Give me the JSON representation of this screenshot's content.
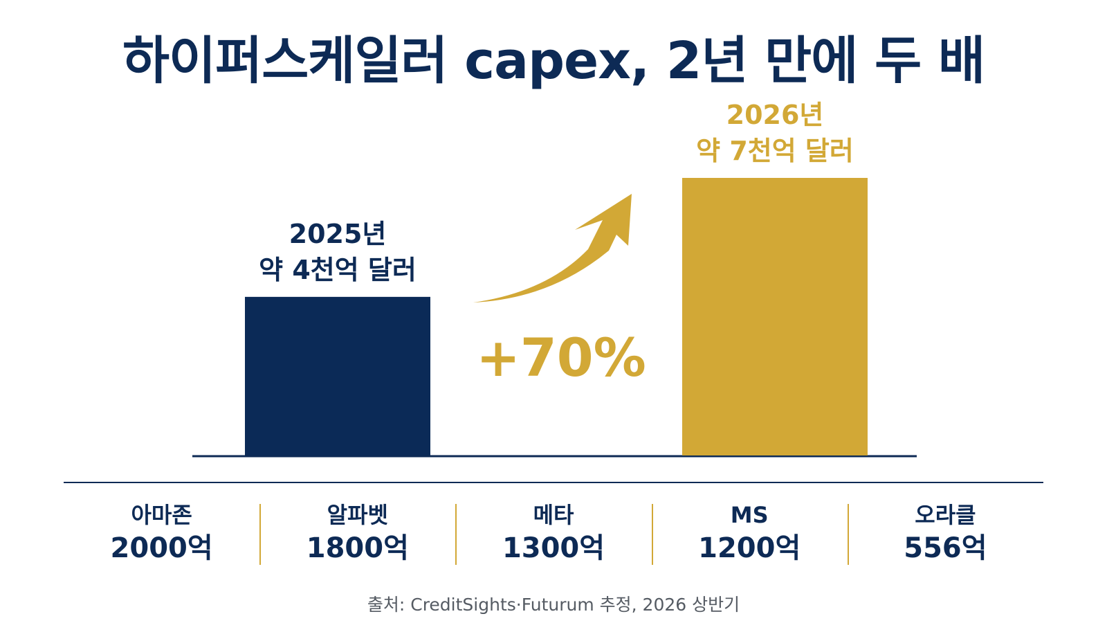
{
  "title": "하이퍼스케일러 capex, 2년 만에 두 배",
  "colors": {
    "navy": "#0b2a57",
    "gold": "#d2a836",
    "text": "#0d2a55"
  },
  "chart_data": {
    "type": "bar",
    "title": "하이퍼스케일러 capex, 2년 만에 두 배",
    "categories": [
      "2025년",
      "2026년"
    ],
    "values": [
      4000,
      7000
    ],
    "unit": "억 달러",
    "ylim": [
      0,
      7000
    ],
    "grid": false,
    "bars": [
      {
        "year": "2025년",
        "label": "약 4천억 달러",
        "value": 4000,
        "color": "#0b2a57"
      },
      {
        "year": "2026년",
        "label": "약 7천억 달러",
        "value": 7000,
        "color": "#d2a836"
      }
    ],
    "annotation": {
      "text": "+70%",
      "icon": "curved-up-arrow-icon"
    }
  },
  "companies": [
    {
      "name": "아마존",
      "value": "2000억"
    },
    {
      "name": "알파벳",
      "value": "1800억"
    },
    {
      "name": "메타",
      "value": "1300억"
    },
    {
      "name": "MS",
      "value": "1200억"
    },
    {
      "name": "오라클",
      "value": "556억"
    }
  ],
  "source": "출처: CreditSights·Futurum 추정, 2026 상반기"
}
